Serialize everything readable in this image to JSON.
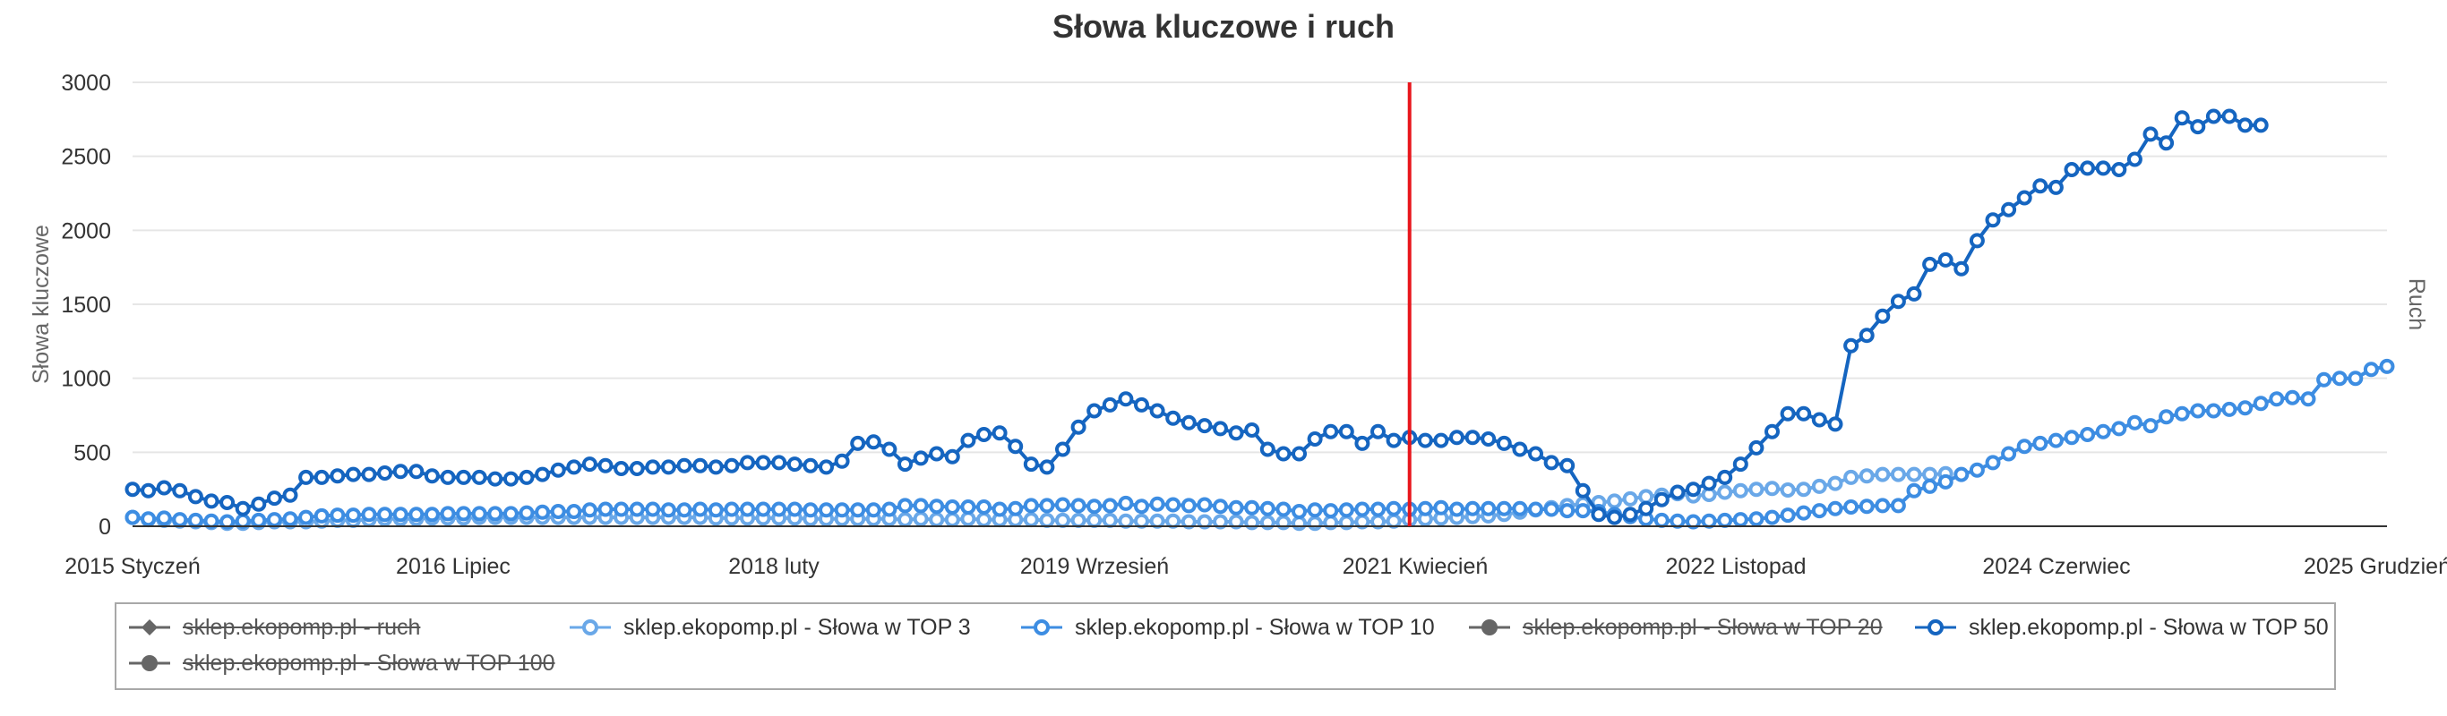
{
  "chart_data": {
    "type": "line",
    "title": "Słowa kluczowe i ruch",
    "ylabel": "Słowa kluczowe",
    "y2label": "Ruch",
    "ylim": [
      0,
      3000
    ],
    "y_ticks": [
      0,
      500,
      1000,
      1500,
      2000,
      2500,
      3000
    ],
    "x_tick_labels": [
      "2015 Styczeń",
      "2016 Lipiec",
      "2018 luty",
      "2019 Wrzesień",
      "2021 Kwiecień",
      "2022 Listopad",
      "2024 Czerwiec",
      "2025 Grudzień"
    ],
    "grid": true,
    "legend_position": "bottom",
    "marker_line": {
      "color": "#e8161c",
      "x_index": 81
    },
    "colors": {
      "top50": "#1565c0",
      "top10": "#3d8de2",
      "top3": "#6aa8e8",
      "disabled": "#666666",
      "axis": "#333333",
      "grid": "#e6e6e6"
    },
    "series": [
      {
        "name": "sklep.ekopomp.pl - ruch",
        "visible": false,
        "marker": "diamond"
      },
      {
        "name": "sklep.ekopomp.pl - Słowa w TOP 3",
        "visible": true,
        "marker": "circle",
        "color": "#6aa8e8",
        "values": [
          60,
          45,
          40,
          35,
          30,
          25,
          20,
          20,
          25,
          30,
          30,
          30,
          35,
          40,
          40,
          45,
          50,
          50,
          50,
          55,
          55,
          55,
          60,
          60,
          60,
          60,
          60,
          60,
          60,
          60,
          60,
          60,
          60,
          60,
          60,
          60,
          60,
          55,
          55,
          55,
          55,
          55,
          55,
          50,
          50,
          50,
          50,
          50,
          50,
          45,
          50,
          45,
          45,
          50,
          45,
          45,
          45,
          45,
          40,
          40,
          40,
          40,
          40,
          35,
          35,
          35,
          35,
          30,
          30,
          30,
          30,
          25,
          25,
          25,
          20,
          20,
          25,
          25,
          30,
          30,
          35,
          45,
          50,
          55,
          60,
          65,
          70,
          80,
          95,
          110,
          125,
          140,
          150,
          160,
          170,
          185,
          200,
          210,
          220,
          205,
          215,
          230,
          240,
          250,
          255,
          245,
          250,
          270,
          290,
          330,
          340,
          350,
          350,
          350,
          350,
          355
        ]
      },
      {
        "name": "sklep.ekopomp.pl - Słowa w TOP 10",
        "visible": true,
        "marker": "circle",
        "color": "#3d8de2",
        "values": [
          60,
          50,
          55,
          45,
          40,
          35,
          30,
          35,
          40,
          45,
          50,
          60,
          70,
          75,
          75,
          80,
          80,
          80,
          80,
          80,
          85,
          85,
          85,
          85,
          85,
          90,
          95,
          100,
          100,
          110,
          115,
          115,
          115,
          115,
          110,
          110,
          115,
          110,
          115,
          115,
          115,
          115,
          115,
          110,
          110,
          110,
          110,
          110,
          115,
          140,
          140,
          135,
          130,
          130,
          130,
          115,
          120,
          140,
          140,
          145,
          140,
          135,
          140,
          155,
          135,
          150,
          145,
          140,
          145,
          135,
          125,
          125,
          120,
          115,
          100,
          110,
          105,
          110,
          115,
          115,
          120,
          115,
          120,
          125,
          115,
          120,
          120,
          120,
          120,
          115,
          115,
          105,
          105,
          100,
          80,
          65,
          50,
          40,
          35,
          30,
          35,
          40,
          45,
          50,
          60,
          75,
          90,
          105,
          120,
          130,
          135,
          140,
          140,
          240,
          270,
          300,
          350,
          380,
          430,
          490,
          540,
          560,
          580,
          600,
          620,
          640,
          660,
          700,
          680,
          740,
          760,
          780,
          780,
          790,
          800,
          830,
          860,
          870,
          860,
          990,
          1000,
          1000,
          1060,
          1080
        ]
      },
      {
        "name": "sklep.ekopomp.pl - Słowa w TOP 20",
        "visible": false,
        "marker": "circle"
      },
      {
        "name": "sklep.ekopomp.pl - Słowa w TOP 50",
        "visible": true,
        "marker": "circle",
        "color": "#1565c0",
        "values": [
          250,
          240,
          260,
          240,
          200,
          170,
          160,
          120,
          150,
          190,
          210,
          330,
          330,
          340,
          350,
          350,
          360,
          370,
          370,
          340,
          330,
          330,
          330,
          320,
          320,
          330,
          350,
          380,
          400,
          420,
          410,
          390,
          390,
          400,
          400,
          410,
          410,
          400,
          410,
          430,
          430,
          430,
          420,
          410,
          400,
          440,
          560,
          570,
          520,
          420,
          460,
          490,
          470,
          580,
          620,
          630,
          540,
          420,
          400,
          520,
          670,
          780,
          820,
          860,
          820,
          780,
          730,
          700,
          680,
          660,
          630,
          650,
          520,
          490,
          490,
          590,
          640,
          640,
          560,
          640,
          580,
          600,
          580,
          580,
          600,
          600,
          590,
          560,
          520,
          490,
          430,
          410,
          240,
          80,
          60,
          80,
          120,
          180,
          230,
          250,
          290,
          330,
          420,
          530,
          640,
          760,
          760,
          720,
          690,
          1220,
          1290,
          1420,
          1520,
          1570,
          1770,
          1800,
          1740,
          1930,
          2070,
          2140,
          2220,
          2300,
          2290,
          2410,
          2420,
          2420,
          2410,
          2480,
          2650,
          2590,
          2760,
          2700,
          2770,
          2770,
          2710,
          2710
        ]
      },
      {
        "name": "sklep.ekopomp.pl - Słowa w TOP 100",
        "visible": false,
        "marker": "circle"
      }
    ]
  }
}
